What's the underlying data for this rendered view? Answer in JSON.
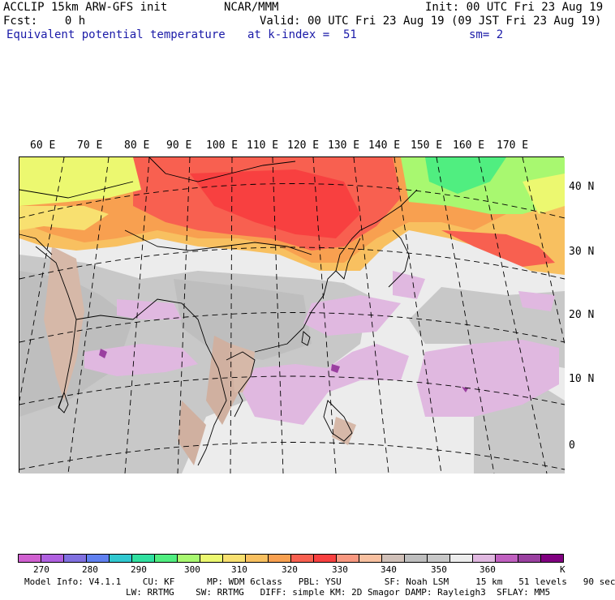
{
  "header": {
    "model": "ACCLIP 15km ARW-GFS init",
    "org": "NCAR/MMM",
    "init": "Init: 00 UTC Fri 23 Aug 19",
    "fcst": "Fcst:    0 h",
    "valid": "Valid: 00 UTC Fri 23 Aug 19 (09 JST Fri 23 Aug 19)",
    "field": "Equivalent potential temperature",
    "level": "at k-index =  51",
    "smooth": "sm= 2"
  },
  "map": {
    "lon_labels": [
      "60 E",
      "70 E",
      "80 E",
      "90 E",
      "100 E",
      "110 E",
      "120 E",
      "130 E",
      "140 E",
      "150 E",
      "160 E",
      "170 E"
    ],
    "lat_labels": [
      "40 N",
      "30 N",
      "20 N",
      "10 N",
      "0"
    ]
  },
  "colorbar": {
    "colors": [
      "#d060d0",
      "#b060e0",
      "#8070e0",
      "#6080f0",
      "#30c8d0",
      "#30e0a0",
      "#50ee80",
      "#a8f870",
      "#ecf870",
      "#f8e070",
      "#f8c060",
      "#f8a050",
      "#f86050",
      "#f84040",
      "#f89880",
      "#f8c0a0",
      "#d0c0b8",
      "#bebebe",
      "#c8c8c8",
      "#ececec",
      "#e0b8e0",
      "#c060c0",
      "#9a40a0",
      "#800080"
    ],
    "labels": [
      "270",
      "280",
      "290",
      "300",
      "310",
      "320",
      "330",
      "340",
      "350",
      "360",
      "K"
    ]
  },
  "footer": {
    "line1": "Model Info: V4.1.1    CU: KF      MP: WDM 6class   PBL: YSU        SF: Noah LSM     15 km   51 levels   90 sec",
    "line2": "LW: RRTMG    SW: RRTMG   DIFF: simple KM: 2D Smagor DAMP: Rayleigh3  SFLAY: MM5"
  }
}
